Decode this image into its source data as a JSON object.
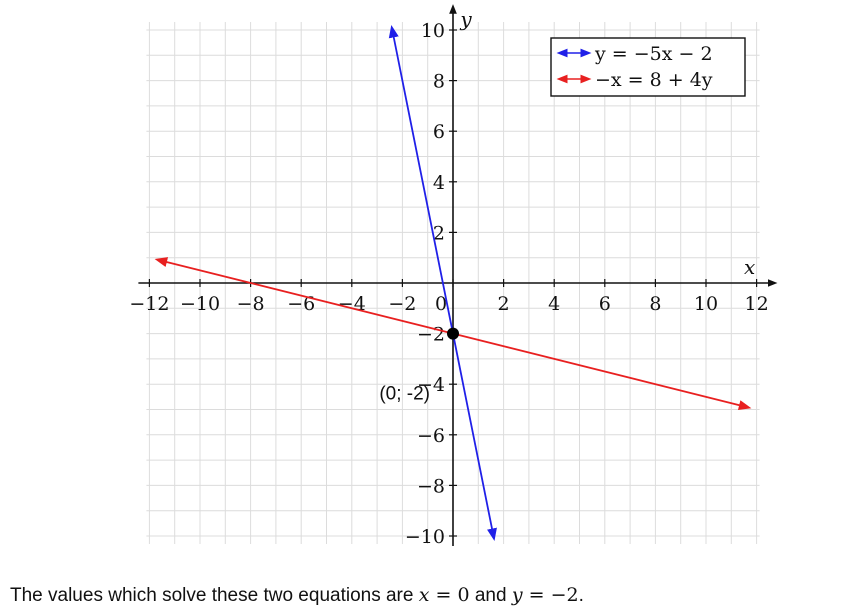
{
  "chart_data": {
    "type": "line",
    "xlim": [
      -12,
      12
    ],
    "ylim": [
      -10,
      10
    ],
    "grid": true,
    "minor_grid_step": 1,
    "xticks": [
      -12,
      -10,
      -8,
      -6,
      -4,
      -2,
      0,
      2,
      4,
      6,
      8,
      10,
      12
    ],
    "yticks": [
      -10,
      -8,
      -6,
      -4,
      -2,
      2,
      4,
      6,
      8,
      10
    ],
    "xlabel": "x",
    "ylabel": "y",
    "legend_position": "top-right",
    "series": [
      {
        "name": "y = −5x − 2",
        "color": "#2020e8",
        "slope": -5,
        "intercept": -2,
        "x": [
          -2.4,
          1.6
        ],
        "y": [
          10,
          -10
        ]
      },
      {
        "name": "−x = 8 + 4y",
        "color": "#e82020",
        "slope": -0.25,
        "intercept": -2,
        "x": [
          -11.6,
          11.6
        ],
        "y": [
          0.9,
          -4.9
        ]
      }
    ],
    "points": [
      {
        "x": 0,
        "y": -2,
        "label": "(0; -2)"
      }
    ]
  },
  "caption": {
    "prefix": "The values which solve these two equations are",
    "x_expr": "x = 0",
    "joiner": "and",
    "y_expr": "y = −2",
    "suffix": "."
  }
}
